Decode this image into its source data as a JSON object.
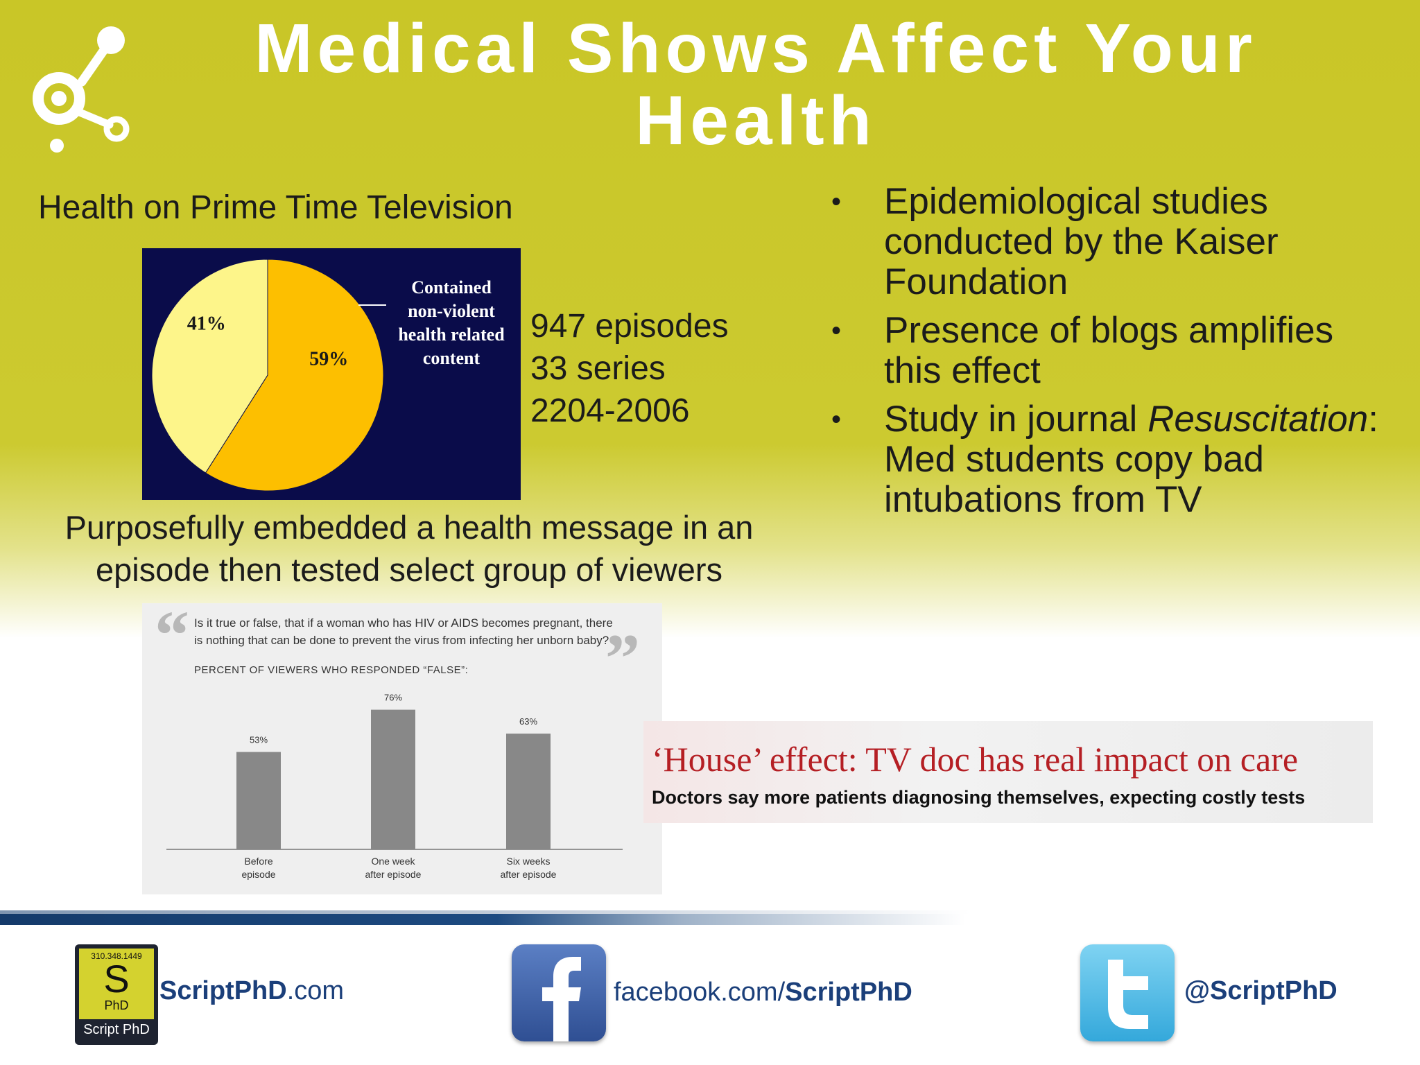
{
  "slide": {
    "title": "Medical Shows Affect Your Health",
    "chart_heading": "Health on Prime Time Television",
    "stats": [
      "947 episodes",
      "33 series",
      "2204-2006"
    ],
    "embed_text": "Purposefully embedded a health message in an episode then tested select group of viewers",
    "bullets": [
      {
        "text": "Epidemiological studies conducted by the Kaiser Foundation"
      },
      {
        "text": "Presence of blogs amplifies this effect"
      },
      {
        "pre": "Study in journal ",
        "italic": "Resuscitation",
        "post": ":  Med students copy bad intubations from TV"
      }
    ],
    "bullet_glyph": "•"
  },
  "chart_data": [
    {
      "type": "pie",
      "slices": [
        {
          "label": "41%",
          "value": 41,
          "color": "#fdf58a"
        },
        {
          "label": "59%",
          "value": 59,
          "color": "#fdbf00"
        }
      ],
      "annotation": [
        "Contained",
        "non-violent",
        "health related",
        "content"
      ],
      "background": "#0a0c4a"
    },
    {
      "type": "bar",
      "question": "Is it true or false, that if a woman who has HIV or AIDS becomes pregnant, there is nothing that can be done to prevent the virus from infecting her unborn baby?",
      "caption": "PERCENT OF VIEWERS WHO RESPONDED “FALSE”:",
      "categories": [
        [
          "Before",
          "episode"
        ],
        [
          "One week",
          "after episode"
        ],
        [
          "Six weeks",
          "after episode"
        ]
      ],
      "values": [
        53,
        76,
        63
      ],
      "value_labels": [
        "53%",
        "76%",
        "63%"
      ],
      "ylim": [
        0,
        100
      ],
      "bar_color": "#888888"
    }
  ],
  "headline": {
    "title": "‘House’ effect: TV doc has real impact on care",
    "subtitle": "Doctors say more patients diagnosing themselves, expecting costly tests"
  },
  "footer": {
    "badge_phone": "310.348.1449",
    "badge_letter": "S",
    "badge_sub": "PhD",
    "badge_name": "Script PhD",
    "site_bold": "ScriptPhD",
    "site_rest": ".com",
    "facebook_pre": "facebook.com/",
    "facebook_bold": "ScriptPhD",
    "twitter": "@ScriptPhD"
  }
}
